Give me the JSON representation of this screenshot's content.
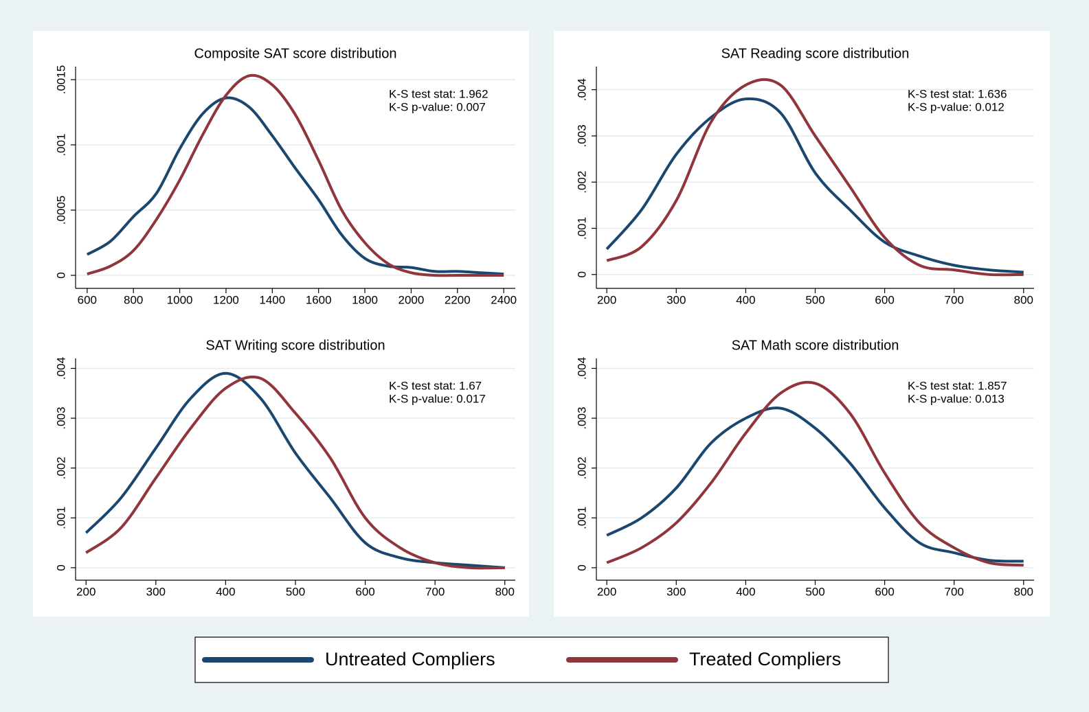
{
  "chart_data": [
    {
      "type": "line",
      "title": "Composite SAT score distribution",
      "annotations": [
        "K-S test stat: 1.962",
        "K-S p-value: 0.007"
      ],
      "x": [
        600,
        700,
        800,
        900,
        1000,
        1100,
        1200,
        1300,
        1400,
        1500,
        1600,
        1700,
        1800,
        1900,
        2000,
        2100,
        2200,
        2300,
        2400
      ],
      "xlim": [
        550,
        2450
      ],
      "xticks": [
        600,
        800,
        1000,
        1200,
        1400,
        1600,
        1800,
        2000,
        2200,
        2400
      ],
      "ylim": [
        -0.0001,
        0.0016
      ],
      "yticks": [
        {
          "value": 0,
          "label": "0"
        },
        {
          "value": 0.0005,
          "label": ".0005"
        },
        {
          "value": 0.001,
          "label": ".001"
        },
        {
          "value": 0.0015,
          "label": ".0015"
        }
      ],
      "grid": true,
      "series": [
        {
          "name": "Untreated Compliers",
          "color": "#1a476f",
          "values": [
            0.00016,
            0.00026,
            0.00045,
            0.00063,
            0.00097,
            0.00124,
            0.00136,
            0.00129,
            0.00107,
            0.00082,
            0.00058,
            0.00031,
            0.00013,
            7e-05,
            6e-05,
            3e-05,
            3e-05,
            2e-05,
            1e-05
          ]
        },
        {
          "name": "Treated Compliers",
          "color": "#90353b",
          "values": [
            1e-05,
            7e-05,
            0.00019,
            0.00043,
            0.00073,
            0.00108,
            0.00138,
            0.00153,
            0.00146,
            0.00123,
            0.00088,
            0.0005,
            0.00025,
            9e-05,
            2e-05,
            0,
            0,
            0,
            0
          ]
        }
      ]
    },
    {
      "type": "line",
      "title": "SAT Reading score distribution",
      "annotations": [
        "K-S test stat: 1.636",
        "K-S p-value: 0.012"
      ],
      "x": [
        200,
        250,
        300,
        350,
        400,
        450,
        500,
        550,
        600,
        650,
        700,
        750,
        800
      ],
      "xlim": [
        185,
        815
      ],
      "xticks": [
        200,
        300,
        400,
        500,
        600,
        700,
        800
      ],
      "ylim": [
        -0.0003,
        0.0045
      ],
      "yticks": [
        {
          "value": 0,
          "label": "0"
        },
        {
          "value": 0.001,
          "label": ".001"
        },
        {
          "value": 0.002,
          "label": ".002"
        },
        {
          "value": 0.003,
          "label": ".003"
        },
        {
          "value": 0.004,
          "label": ".004"
        }
      ],
      "grid": true,
      "series": [
        {
          "name": "Untreated Compliers",
          "color": "#1a476f",
          "values": [
            0.00055,
            0.0014,
            0.0026,
            0.0034,
            0.0038,
            0.0035,
            0.0022,
            0.0014,
            0.0007,
            0.0004,
            0.0002,
            0.0001,
            5e-05
          ]
        },
        {
          "name": "Treated Compliers",
          "color": "#90353b",
          "values": [
            0.0003,
            0.0006,
            0.0016,
            0.0033,
            0.0041,
            0.0041,
            0.003,
            0.0019,
            0.0008,
            0.0002,
            0.0001,
            0,
            0
          ]
        }
      ]
    },
    {
      "type": "line",
      "title": "SAT Writing score distribution",
      "annotations": [
        "K-S test stat: 1.67",
        "K-S p-value: 0.017"
      ],
      "x": [
        200,
        250,
        300,
        350,
        400,
        450,
        500,
        550,
        600,
        650,
        700,
        750,
        800
      ],
      "xlim": [
        185,
        815
      ],
      "xticks": [
        200,
        300,
        400,
        500,
        600,
        700,
        800
      ],
      "ylim": [
        -0.00025,
        0.0042
      ],
      "yticks": [
        {
          "value": 0,
          "label": "0"
        },
        {
          "value": 0.001,
          "label": ".001"
        },
        {
          "value": 0.002,
          "label": ".002"
        },
        {
          "value": 0.003,
          "label": ".003"
        },
        {
          "value": 0.004,
          "label": ".004"
        }
      ],
      "grid": true,
      "series": [
        {
          "name": "Untreated Compliers",
          "color": "#1a476f",
          "values": [
            0.0007,
            0.0014,
            0.0024,
            0.0034,
            0.0039,
            0.0034,
            0.0023,
            0.0014,
            0.0005,
            0.0002,
            0.0001,
            5e-05,
            0
          ]
        },
        {
          "name": "Treated Compliers",
          "color": "#90353b",
          "values": [
            0.0003,
            0.0008,
            0.0018,
            0.0028,
            0.0036,
            0.0038,
            0.0031,
            0.0022,
            0.001,
            0.0004,
            0.0001,
            0,
            0
          ]
        }
      ]
    },
    {
      "type": "line",
      "title": "SAT Math score distribution",
      "annotations": [
        "K-S test stat: 1.857",
        "K-S p-value: 0.013"
      ],
      "x": [
        200,
        250,
        300,
        350,
        400,
        450,
        500,
        550,
        600,
        650,
        700,
        750,
        800
      ],
      "xlim": [
        185,
        815
      ],
      "xticks": [
        200,
        300,
        400,
        500,
        600,
        700,
        800
      ],
      "ylim": [
        -0.00025,
        0.0042
      ],
      "yticks": [
        {
          "value": 0,
          "label": "0"
        },
        {
          "value": 0.001,
          "label": ".001"
        },
        {
          "value": 0.002,
          "label": ".002"
        },
        {
          "value": 0.003,
          "label": ".003"
        },
        {
          "value": 0.004,
          "label": ".004"
        }
      ],
      "grid": true,
      "series": [
        {
          "name": "Untreated Compliers",
          "color": "#1a476f",
          "values": [
            0.00065,
            0.001,
            0.0016,
            0.0025,
            0.003,
            0.0032,
            0.0028,
            0.0021,
            0.0012,
            0.0005,
            0.0003,
            0.00015,
            0.00013
          ]
        },
        {
          "name": "Treated Compliers",
          "color": "#90353b",
          "values": [
            0.0001,
            0.0004,
            0.0009,
            0.0017,
            0.0027,
            0.0035,
            0.0037,
            0.0031,
            0.0019,
            0.0009,
            0.0004,
            0.0001,
            5e-05
          ]
        }
      ]
    }
  ]
}
